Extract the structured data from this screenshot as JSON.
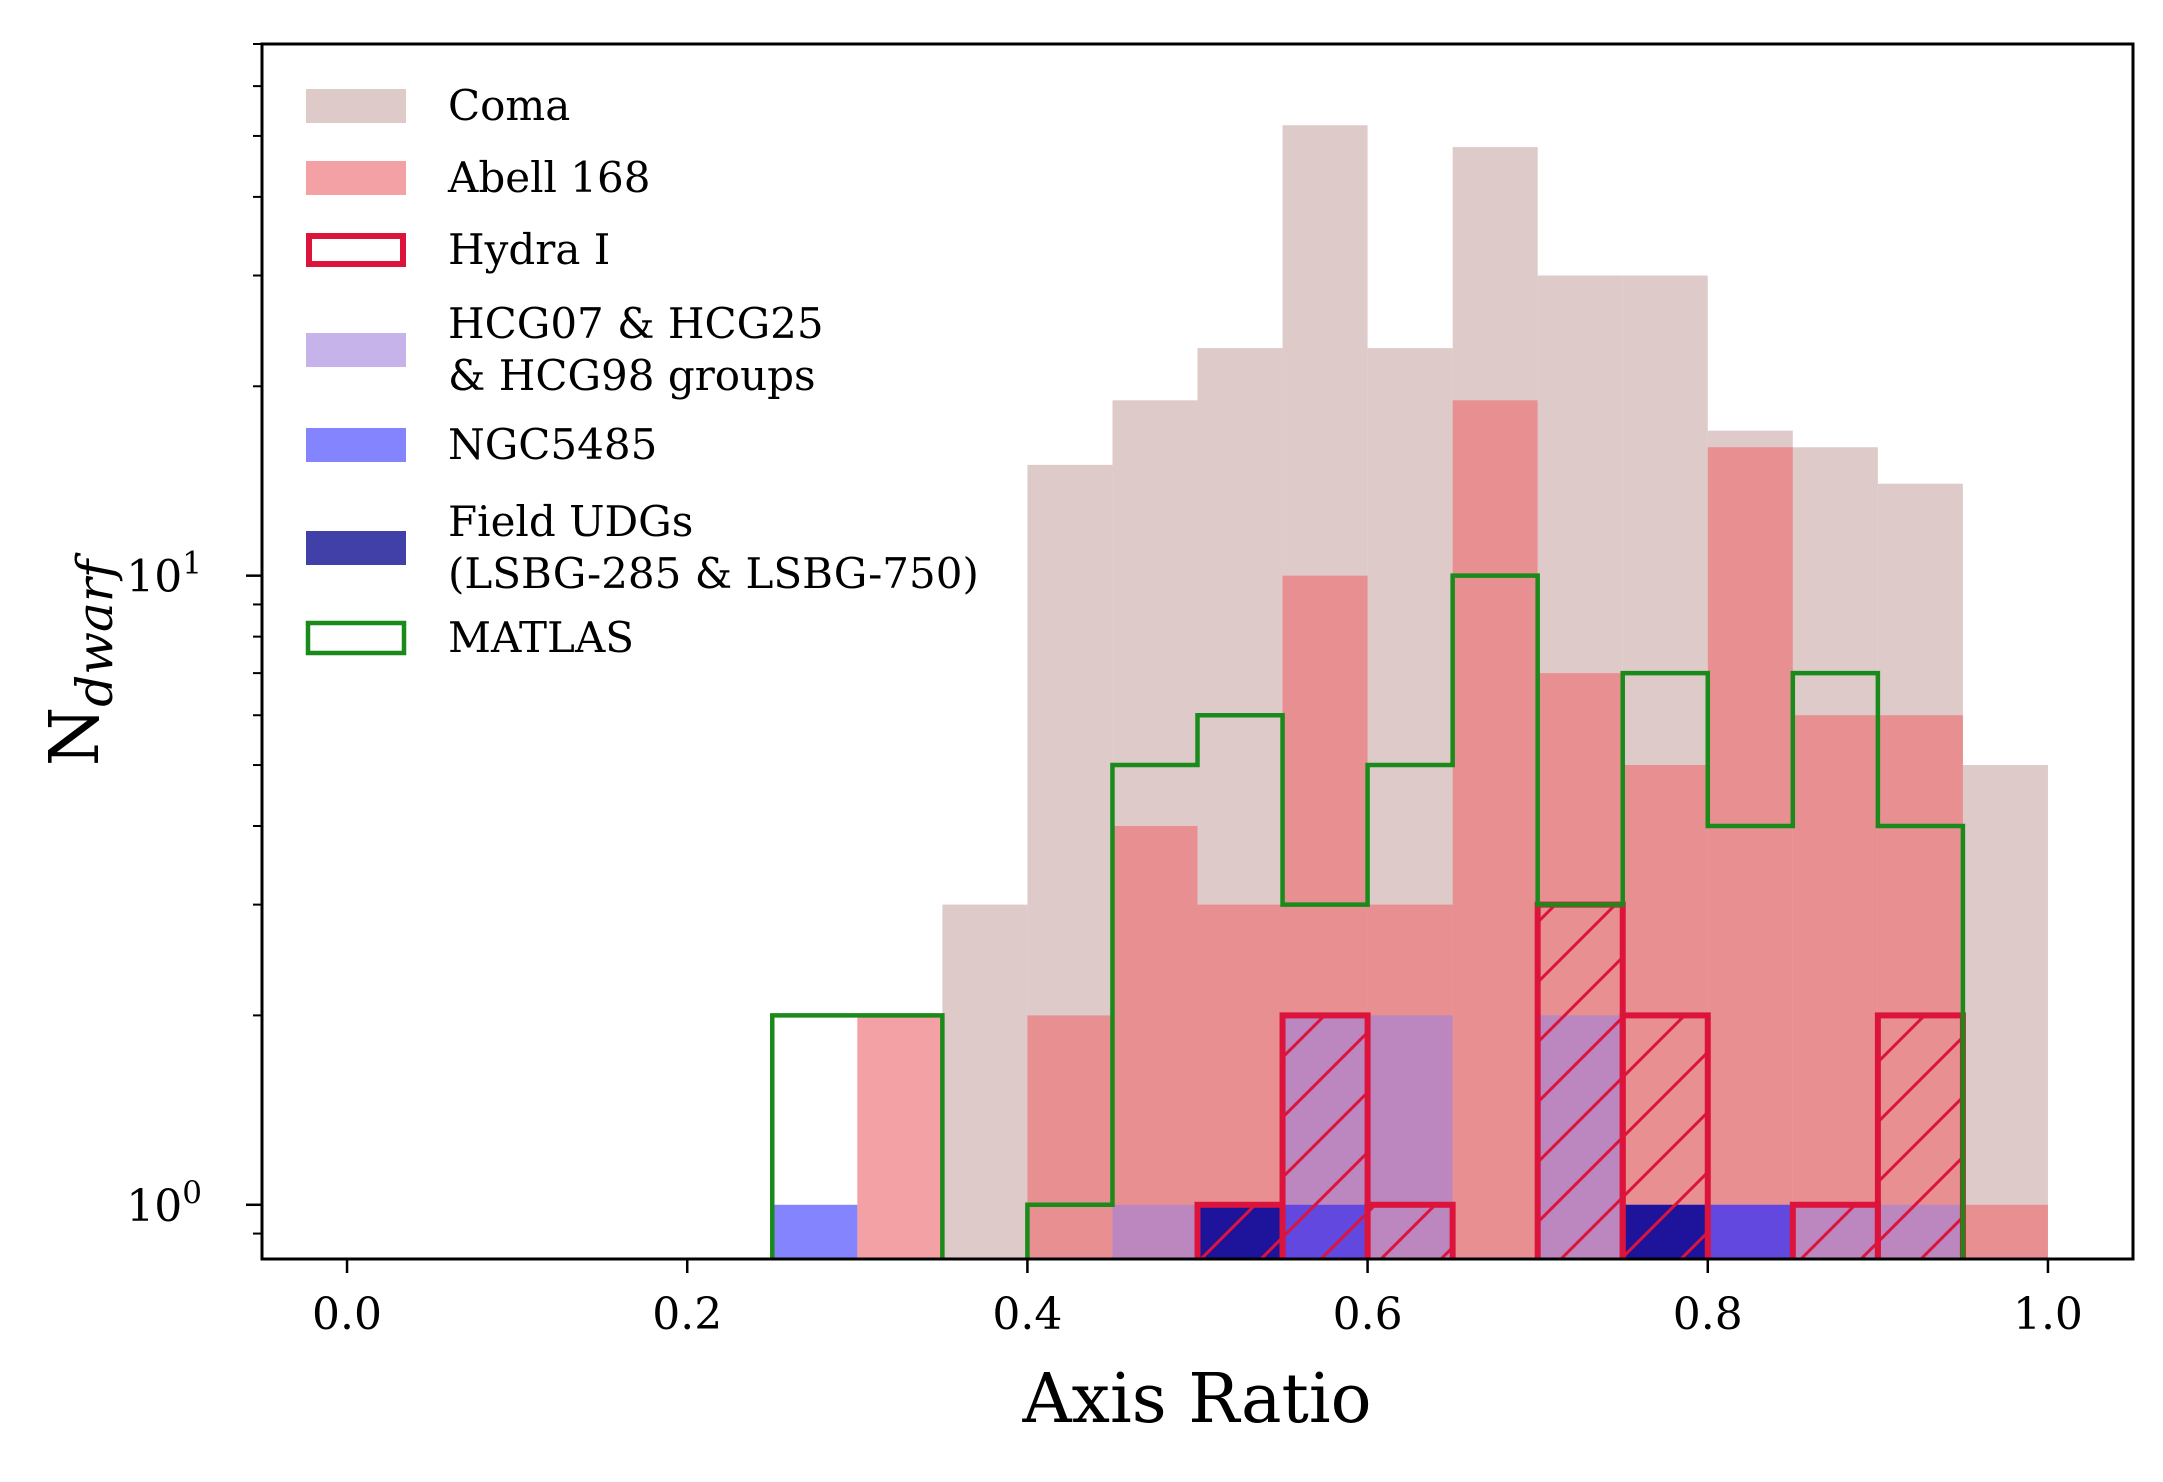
{
  "chart_data": {
    "type": "histogram",
    "title": "",
    "xlabel": "Axis Ratio",
    "ylabel_main": "N",
    "ylabel_sub": "dwarf",
    "xlim": [
      -0.05,
      1.05
    ],
    "ylim": [
      0.82,
      70
    ],
    "yscale": "log",
    "grid": false,
    "legend_position": "top-left",
    "bin_width": 0.05,
    "x_ticks": [
      {
        "value": 0.0,
        "label": "0.0"
      },
      {
        "value": 0.2,
        "label": "0.2"
      },
      {
        "value": 0.4,
        "label": "0.4"
      },
      {
        "value": 0.6,
        "label": "0.6"
      },
      {
        "value": 0.8,
        "label": "0.8"
      },
      {
        "value": 1.0,
        "label": "1.0"
      }
    ],
    "y_ticks": [
      {
        "value": 1,
        "base": "10",
        "exp": "0"
      },
      {
        "value": 10,
        "base": "10",
        "exp": "1"
      }
    ],
    "series": [
      {
        "name": "Coma",
        "style": "filled",
        "color": "#d4b8b8",
        "opacity": 0.75,
        "bins": [
          [
            0.35,
            3
          ],
          [
            0.4,
            15
          ],
          [
            0.45,
            19
          ],
          [
            0.5,
            23
          ],
          [
            0.55,
            52
          ],
          [
            0.6,
            23
          ],
          [
            0.65,
            48
          ],
          [
            0.7,
            30
          ],
          [
            0.75,
            30
          ],
          [
            0.8,
            17
          ],
          [
            0.85,
            16
          ],
          [
            0.9,
            14
          ],
          [
            0.95,
            5
          ]
        ]
      },
      {
        "name": "Abell 168",
        "style": "filled",
        "color": "#ec6f73",
        "opacity": 0.65,
        "bins": [
          [
            0.3,
            2
          ],
          [
            0.4,
            2
          ],
          [
            0.45,
            4
          ],
          [
            0.5,
            3
          ],
          [
            0.55,
            10
          ],
          [
            0.6,
            3
          ],
          [
            0.65,
            19
          ],
          [
            0.7,
            7
          ],
          [
            0.75,
            5
          ],
          [
            0.8,
            16
          ],
          [
            0.85,
            6
          ],
          [
            0.9,
            6
          ],
          [
            0.95,
            1
          ]
        ]
      },
      {
        "name": "Hydra I",
        "style": "hatched",
        "color": "#dc143c",
        "opacity": 1,
        "bins": [
          [
            0.5,
            1
          ],
          [
            0.55,
            2
          ],
          [
            0.6,
            1
          ],
          [
            0.7,
            3
          ],
          [
            0.75,
            2
          ],
          [
            0.85,
            1
          ],
          [
            0.9,
            2
          ]
        ]
      },
      {
        "name_lines": [
          "HCG07 & HCG25",
          "& HCG98 groups"
        ],
        "style": "filled",
        "color": "#9f80dc",
        "opacity": 0.6,
        "bins": [
          [
            0.45,
            1
          ],
          [
            0.55,
            2
          ],
          [
            0.6,
            2
          ],
          [
            0.7,
            2
          ],
          [
            0.8,
            1
          ],
          [
            0.85,
            1
          ],
          [
            0.9,
            1
          ]
        ]
      },
      {
        "name": "NGC5485",
        "style": "filled",
        "color": "#0a0aff",
        "opacity": 0.5,
        "bins": [
          [
            0.25,
            1
          ],
          [
            0.5,
            1
          ],
          [
            0.55,
            1
          ],
          [
            0.75,
            1
          ],
          [
            0.8,
            1
          ]
        ]
      },
      {
        "name_lines": [
          "Field UDGs",
          "(LSBG-285 & LSBG-750)"
        ],
        "style": "filled",
        "color": "#00008b",
        "opacity": 0.75,
        "bins": [
          [
            0.5,
            1
          ],
          [
            0.75,
            1
          ]
        ]
      },
      {
        "name": "MATLAS",
        "style": "step",
        "color": "#1a8a1a",
        "opacity": 1,
        "bins": [
          [
            0.25,
            2
          ],
          [
            0.3,
            2
          ],
          [
            0.4,
            1
          ],
          [
            0.45,
            5
          ],
          [
            0.5,
            6
          ],
          [
            0.55,
            3
          ],
          [
            0.6,
            5
          ],
          [
            0.65,
            10
          ],
          [
            0.7,
            3
          ],
          [
            0.75,
            7
          ],
          [
            0.8,
            4
          ],
          [
            0.85,
            7
          ],
          [
            0.9,
            4
          ]
        ]
      }
    ]
  }
}
